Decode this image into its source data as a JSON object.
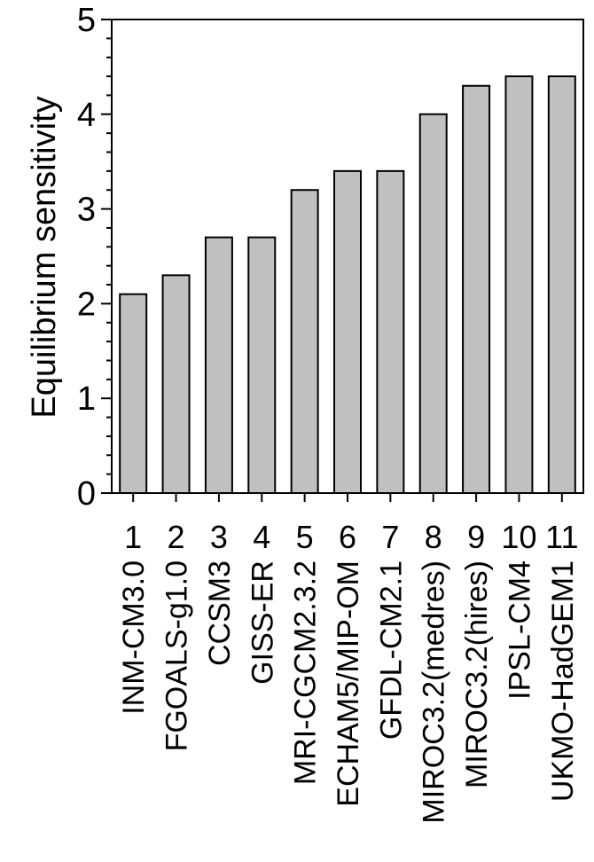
{
  "chart_data": {
    "type": "bar",
    "title": "",
    "xlabel": "",
    "ylabel": "Equilibrium sensitivity",
    "ylim": [
      0,
      5
    ],
    "yticks": [
      0,
      1,
      2,
      3,
      4,
      5
    ],
    "grid": false,
    "categories": [
      "1",
      "2",
      "3",
      "4",
      "5",
      "6",
      "7",
      "8",
      "9",
      "10",
      "11"
    ],
    "model_names": [
      "INM-CM3.0",
      "FGOALS-g1.0",
      "CCSM3",
      "GISS-ER",
      "MRI-CGCM2.3.2",
      "ECHAM5/MIP-OM",
      "GFDL-CM2.1",
      "MIROC3.2(medres)",
      "MIROC3.2(hires)",
      "IPSL-CM4",
      "UKMO-HadGEM1"
    ],
    "values": [
      2.1,
      2.3,
      2.7,
      2.7,
      3.2,
      3.4,
      3.4,
      4.0,
      4.3,
      4.4,
      4.4
    ],
    "bar_color": "#c0c0c0",
    "edge_color": "#000000"
  }
}
